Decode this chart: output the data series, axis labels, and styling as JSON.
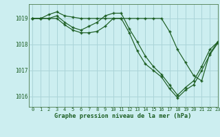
{
  "bg_color": "#cceef0",
  "grid_color": "#aad4d8",
  "line_color": "#1a5c20",
  "title": "Graphe pression niveau de la mer (hPa)",
  "xlim": [
    -0.5,
    23
  ],
  "ylim": [
    1015.6,
    1019.55
  ],
  "yticks": [
    1016,
    1017,
    1018,
    1019
  ],
  "xticks": [
    0,
    1,
    2,
    3,
    4,
    5,
    6,
    7,
    8,
    9,
    10,
    11,
    12,
    13,
    14,
    15,
    16,
    17,
    18,
    19,
    20,
    21,
    22,
    23
  ],
  "series1": {
    "x": [
      0,
      1,
      2,
      3,
      4,
      5,
      6,
      7,
      8,
      9,
      10,
      11,
      12,
      13,
      14,
      15,
      16,
      17,
      18,
      19,
      20,
      21,
      22,
      23
    ],
    "y": [
      1019.0,
      1019.0,
      1019.15,
      1019.25,
      1019.1,
      1019.05,
      1019.0,
      1019.0,
      1019.0,
      1019.0,
      1019.0,
      1019.0,
      1019.0,
      1019.0,
      1019.0,
      1019.0,
      1019.0,
      1018.5,
      1017.8,
      1017.3,
      1016.8,
      1016.6,
      1017.65,
      1018.1
    ]
  },
  "series2": {
    "x": [
      0,
      1,
      2,
      3,
      4,
      5,
      6,
      7,
      8,
      9,
      10,
      11,
      12,
      13,
      14,
      15,
      16,
      17,
      18,
      19,
      20,
      21,
      22,
      23
    ],
    "y": [
      1019.0,
      1019.0,
      1019.0,
      1019.1,
      1018.85,
      1018.65,
      1018.55,
      1018.7,
      1018.85,
      1019.1,
      1019.2,
      1019.2,
      1018.6,
      1018.1,
      1017.55,
      1017.15,
      1016.85,
      1016.45,
      1016.05,
      1016.35,
      1016.6,
      1017.15,
      1017.8,
      1018.1
    ]
  },
  "series3": {
    "x": [
      0,
      1,
      2,
      3,
      4,
      5,
      6,
      7,
      8,
      9,
      10,
      11,
      12,
      13,
      14,
      15,
      16,
      17,
      18,
      19,
      20,
      21,
      22,
      23
    ],
    "y": [
      1019.0,
      1019.0,
      1019.0,
      1019.0,
      1018.75,
      1018.55,
      1018.45,
      1018.45,
      1018.5,
      1018.7,
      1019.0,
      1019.0,
      1018.45,
      1017.75,
      1017.25,
      1017.0,
      1016.75,
      1016.3,
      1015.95,
      1016.25,
      1016.45,
      1017.0,
      1017.6,
      1018.05
    ]
  }
}
